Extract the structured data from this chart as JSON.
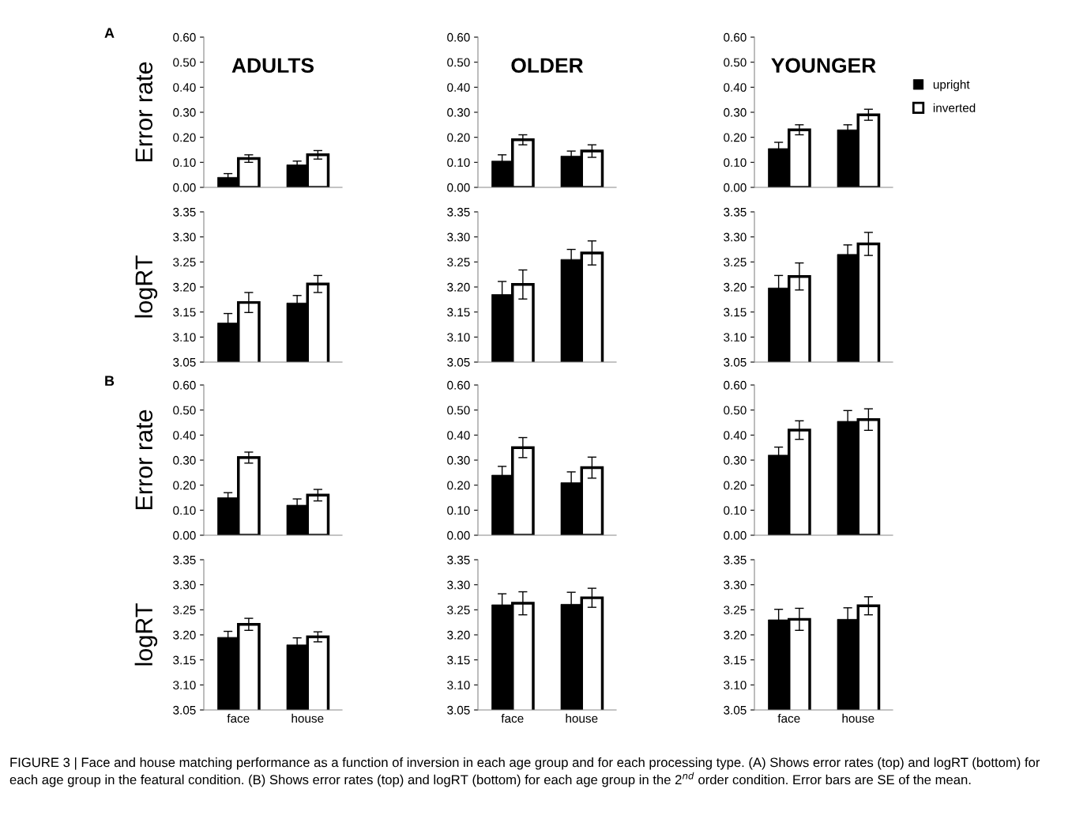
{
  "chart_data": [
    {
      "type": "bar",
      "title": "ADULTS",
      "ylabel": "Error rate",
      "categories": [
        null,
        null
      ],
      "tick_labels": "y",
      "legend": false,
      "ylim": [
        0,
        0.6
      ],
      "yticks": [
        {
          "value": 0,
          "label": "0.00"
        },
        {
          "value": 0.1,
          "label": "0.10"
        },
        {
          "value": 0.2,
          "label": "0.20"
        },
        {
          "value": 0.3,
          "label": "0.30"
        },
        {
          "value": 0.4,
          "label": "0.40"
        },
        {
          "value": 0.5,
          "label": "0.50"
        },
        {
          "value": 0.6,
          "label": "0.60"
        }
      ],
      "annotations": [
        "A",
        "FIGURE 3 | Face and house matching performance as a function of inversion in each age group and for each processing type. (A) Shows error rates (top) and logRT (bottom) for each age group in the featural condition. (B) Shows error rates (top) and logRT (bottom) for each age group in the 2$^{nd}$ order condition. Error bars are SE of the mean."
      ],
      "series": [
        {
          "color": "#000000",
          "values": [
            0.04,
            0.09
          ],
          "errors": [
            0.015,
            0.015
          ]
        },
        {
          "color": "#ffffff",
          "values": [
            0.115,
            0.13
          ],
          "errors": [
            0.015,
            0.017
          ]
        }
      ]
    },
    {
      "type": "bar",
      "title": "OLDER",
      "categories": [
        null,
        null
      ],
      "tick_labels": "y",
      "legend": false,
      "ylim": [
        0,
        0.6
      ],
      "yticks": [
        {
          "value": 0,
          "label": "0.00"
        },
        {
          "value": 0.1,
          "label": "0.10"
        },
        {
          "value": 0.2,
          "label": "0.20"
        },
        {
          "value": 0.3,
          "label": "0.30"
        },
        {
          "value": 0.4,
          "label": "0.40"
        },
        {
          "value": 0.5,
          "label": "0.50"
        },
        {
          "value": 0.6,
          "label": "0.60"
        }
      ],
      "series": [
        {
          "color": "#000000",
          "values": [
            0.105,
            0.125
          ],
          "errors": [
            0.025,
            0.02
          ]
        },
        {
          "color": "#ffffff",
          "values": [
            0.19,
            0.145
          ],
          "errors": [
            0.02,
            0.025
          ]
        }
      ]
    },
    {
      "type": "bar",
      "title": "YOUNGER",
      "categories": [
        null,
        null
      ],
      "tick_labels": "y",
      "legend": "right",
      "ylim": [
        0,
        0.6
      ],
      "yticks": [
        {
          "value": 0,
          "label": "0.00"
        },
        {
          "value": 0.1,
          "label": "0.10"
        },
        {
          "value": 0.2,
          "label": "0.20"
        },
        {
          "value": 0.3,
          "label": "0.30"
        },
        {
          "value": 0.4,
          "label": "0.40"
        },
        {
          "value": 0.5,
          "label": "0.50"
        },
        {
          "value": 0.6,
          "label": "0.60"
        }
      ],
      "series": [
        {
          "name": "upright",
          "color": "#000000",
          "values": [
            0.155,
            0.23
          ],
          "errors": [
            0.025,
            0.02
          ]
        },
        {
          "name": "inverted",
          "color": "#ffffff",
          "values": [
            0.23,
            0.29
          ],
          "errors": [
            0.02,
            0.022
          ]
        }
      ]
    },
    {
      "type": "bar",
      "ylabel": "logRT",
      "categories": [
        null,
        null
      ],
      "tick_labels": "y",
      "legend": false,
      "ylim": [
        3.05,
        3.35
      ],
      "yticks": [
        {
          "value": 3.05,
          "label": "3.05"
        },
        {
          "value": 3.1,
          "label": "3.10"
        },
        {
          "value": 3.15,
          "label": "3.15"
        },
        {
          "value": 3.2,
          "label": "3.20"
        },
        {
          "value": 3.25,
          "label": "3.25"
        },
        {
          "value": 3.3,
          "label": "3.30"
        },
        {
          "value": 3.35,
          "label": "3.35"
        }
      ],
      "series": [
        {
          "color": "#000000",
          "values": [
            3.128,
            3.168
          ],
          "errors": [
            0.019,
            0.015
          ]
        },
        {
          "color": "#ffffff",
          "values": [
            3.169,
            3.206
          ],
          "errors": [
            0.02,
            0.017
          ]
        }
      ]
    },
    {
      "type": "bar",
      "categories": [
        null,
        null
      ],
      "tick_labels": "y",
      "legend": false,
      "ylim": [
        3.05,
        3.35
      ],
      "yticks": [
        {
          "value": 3.05,
          "label": "3.05"
        },
        {
          "value": 3.1,
          "label": "3.10"
        },
        {
          "value": 3.15,
          "label": "3.15"
        },
        {
          "value": 3.2,
          "label": "3.20"
        },
        {
          "value": 3.25,
          "label": "3.25"
        },
        {
          "value": 3.3,
          "label": "3.30"
        },
        {
          "value": 3.35,
          "label": "3.35"
        }
      ],
      "series": [
        {
          "color": "#000000",
          "values": [
            3.185,
            3.255
          ],
          "errors": [
            0.026,
            0.02
          ]
        },
        {
          "color": "#ffffff",
          "values": [
            3.205,
            3.268
          ],
          "errors": [
            0.029,
            0.024
          ]
        }
      ]
    },
    {
      "type": "bar",
      "categories": [
        null,
        null
      ],
      "tick_labels": "y",
      "legend": false,
      "ylim": [
        3.05,
        3.35
      ],
      "yticks": [
        {
          "value": 3.05,
          "label": "3.05"
        },
        {
          "value": 3.1,
          "label": "3.10"
        },
        {
          "value": 3.15,
          "label": "3.15"
        },
        {
          "value": 3.2,
          "label": "3.20"
        },
        {
          "value": 3.25,
          "label": "3.25"
        },
        {
          "value": 3.3,
          "label": "3.30"
        },
        {
          "value": 3.35,
          "label": "3.35"
        }
      ],
      "series": [
        {
          "color": "#000000",
          "values": [
            3.198,
            3.265
          ],
          "errors": [
            0.025,
            0.019
          ]
        },
        {
          "color": "#ffffff",
          "values": [
            3.221,
            3.286
          ],
          "errors": [
            0.027,
            0.023
          ]
        }
      ]
    },
    {
      "type": "bar",
      "ylabel": "Error rate",
      "categories": [
        null,
        null
      ],
      "tick_labels": "y",
      "legend": false,
      "ylim": [
        0,
        0.6
      ],
      "yticks": [
        {
          "value": 0,
          "label": "0.00"
        },
        {
          "value": 0.1,
          "label": "0.10"
        },
        {
          "value": 0.2,
          "label": "0.20"
        },
        {
          "value": 0.3,
          "label": "0.30"
        },
        {
          "value": 0.4,
          "label": "0.40"
        },
        {
          "value": 0.5,
          "label": "0.50"
        },
        {
          "value": 0.6,
          "label": "0.60"
        }
      ],
      "annotations": [
        "B"
      ],
      "series": [
        {
          "color": "#000000",
          "values": [
            0.15,
            0.12
          ],
          "errors": [
            0.02,
            0.025
          ]
        },
        {
          "color": "#ffffff",
          "values": [
            0.31,
            0.16
          ],
          "errors": [
            0.022,
            0.023
          ]
        }
      ]
    },
    {
      "type": "bar",
      "categories": [
        null,
        null
      ],
      "tick_labels": "y",
      "legend": false,
      "ylim": [
        0,
        0.6
      ],
      "yticks": [
        {
          "value": 0,
          "label": "0.00"
        },
        {
          "value": 0.1,
          "label": "0.10"
        },
        {
          "value": 0.2,
          "label": "0.20"
        },
        {
          "value": 0.3,
          "label": "0.30"
        },
        {
          "value": 0.4,
          "label": "0.40"
        },
        {
          "value": 0.5,
          "label": "0.50"
        },
        {
          "value": 0.6,
          "label": "0.60"
        }
      ],
      "series": [
        {
          "color": "#000000",
          "values": [
            0.24,
            0.21
          ],
          "errors": [
            0.035,
            0.043
          ]
        },
        {
          "color": "#ffffff",
          "values": [
            0.35,
            0.27
          ],
          "errors": [
            0.04,
            0.042
          ]
        }
      ]
    },
    {
      "type": "bar",
      "categories": [
        null,
        null
      ],
      "tick_labels": "y",
      "legend": false,
      "ylim": [
        0,
        0.6
      ],
      "yticks": [
        {
          "value": 0,
          "label": "0.00"
        },
        {
          "value": 0.1,
          "label": "0.10"
        },
        {
          "value": 0.2,
          "label": "0.20"
        },
        {
          "value": 0.3,
          "label": "0.30"
        },
        {
          "value": 0.4,
          "label": "0.40"
        },
        {
          "value": 0.5,
          "label": "0.50"
        },
        {
          "value": 0.6,
          "label": "0.60"
        }
      ],
      "series": [
        {
          "color": "#000000",
          "values": [
            0.32,
            0.455
          ],
          "errors": [
            0.032,
            0.043
          ]
        },
        {
          "color": "#ffffff",
          "values": [
            0.42,
            0.462
          ],
          "errors": [
            0.037,
            0.043
          ]
        }
      ]
    },
    {
      "type": "bar",
      "ylabel": "logRT",
      "categories": [
        "face",
        "house"
      ],
      "legend": false,
      "ylim": [
        3.05,
        3.35
      ],
      "yticks": [
        {
          "value": 3.05,
          "label": "3.05"
        },
        {
          "value": 3.1,
          "label": "3.10"
        },
        {
          "value": 3.15,
          "label": "3.15"
        },
        {
          "value": 3.2,
          "label": "3.20"
        },
        {
          "value": 3.25,
          "label": "3.25"
        },
        {
          "value": 3.3,
          "label": "3.30"
        },
        {
          "value": 3.35,
          "label": "3.35"
        }
      ],
      "series": [
        {
          "color": "#000000",
          "values": [
            3.195,
            3.18
          ],
          "errors": [
            0.012,
            0.014
          ]
        },
        {
          "color": "#ffffff",
          "values": [
            3.221,
            3.196
          ],
          "errors": [
            0.012,
            0.01
          ]
        }
      ]
    },
    {
      "type": "bar",
      "categories": [
        "face",
        "house"
      ],
      "legend": false,
      "ylim": [
        3.05,
        3.35
      ],
      "yticks": [
        {
          "value": 3.05,
          "label": "3.05"
        },
        {
          "value": 3.1,
          "label": "3.10"
        },
        {
          "value": 3.15,
          "label": "3.15"
        },
        {
          "value": 3.2,
          "label": "3.20"
        },
        {
          "value": 3.25,
          "label": "3.25"
        },
        {
          "value": 3.3,
          "label": "3.30"
        },
        {
          "value": 3.35,
          "label": "3.35"
        }
      ],
      "series": [
        {
          "color": "#000000",
          "values": [
            3.26,
            3.261
          ],
          "errors": [
            0.022,
            0.024
          ]
        },
        {
          "color": "#ffffff",
          "values": [
            3.263,
            3.274
          ],
          "errors": [
            0.023,
            0.019
          ]
        }
      ]
    },
    {
      "type": "bar",
      "categories": [
        "face",
        "house"
      ],
      "legend": false,
      "ylim": [
        3.05,
        3.35
      ],
      "yticks": [
        {
          "value": 3.05,
          "label": "3.05"
        },
        {
          "value": 3.1,
          "label": "3.10"
        },
        {
          "value": 3.15,
          "label": "3.15"
        },
        {
          "value": 3.2,
          "label": "3.20"
        },
        {
          "value": 3.25,
          "label": "3.25"
        },
        {
          "value": 3.3,
          "label": "3.30"
        },
        {
          "value": 3.35,
          "label": "3.35"
        }
      ],
      "series": [
        {
          "color": "#000000",
          "values": [
            3.23,
            3.231
          ],
          "errors": [
            0.021,
            0.023
          ]
        },
        {
          "color": "#ffffff",
          "values": [
            3.231,
            3.258
          ],
          "errors": [
            0.022,
            0.018
          ]
        }
      ]
    }
  ]
}
